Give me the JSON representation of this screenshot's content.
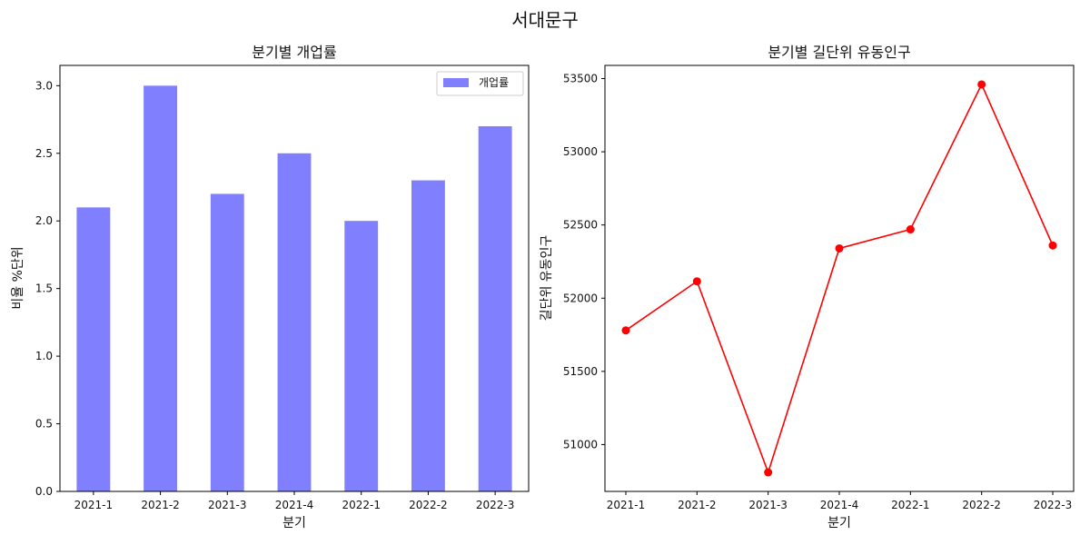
{
  "figure": {
    "title": "서대문구"
  },
  "chart_data": [
    {
      "type": "bar",
      "title": "분기별 개업률",
      "xlabel": "분기",
      "ylabel": "비율 %단위",
      "categories": [
        "2021-1",
        "2021-2",
        "2021-3",
        "2021-4",
        "2022-1",
        "2022-2",
        "2022-3"
      ],
      "series": [
        {
          "name": "개업률",
          "values": [
            2.1,
            3.0,
            2.2,
            2.5,
            2.0,
            2.3,
            2.7
          ],
          "color": "#8080ff"
        }
      ],
      "ylim": [
        0,
        3.15
      ],
      "yticks": [
        "0.0",
        "0.5",
        "1.0",
        "1.5",
        "2.0",
        "2.5",
        "3.0"
      ],
      "legend": "top-right",
      "grid": false
    },
    {
      "type": "line",
      "title": "분기별 길단위 유동인구",
      "xlabel": "분기",
      "ylabel": "길단위 유동인구",
      "categories": [
        "2021-1",
        "2021-2",
        "2021-3",
        "2021-4",
        "2022-1",
        "2022-2",
        "2022-3"
      ],
      "series": [
        {
          "values": [
            51780,
            52115,
            50810,
            52340,
            52470,
            53460,
            52360
          ],
          "color": "#ff0000",
          "marker": "circle"
        }
      ],
      "ylim": [
        50680,
        53590
      ],
      "yticks": [
        "51000",
        "51500",
        "52000",
        "52500",
        "53000",
        "53500"
      ],
      "grid": false
    }
  ]
}
